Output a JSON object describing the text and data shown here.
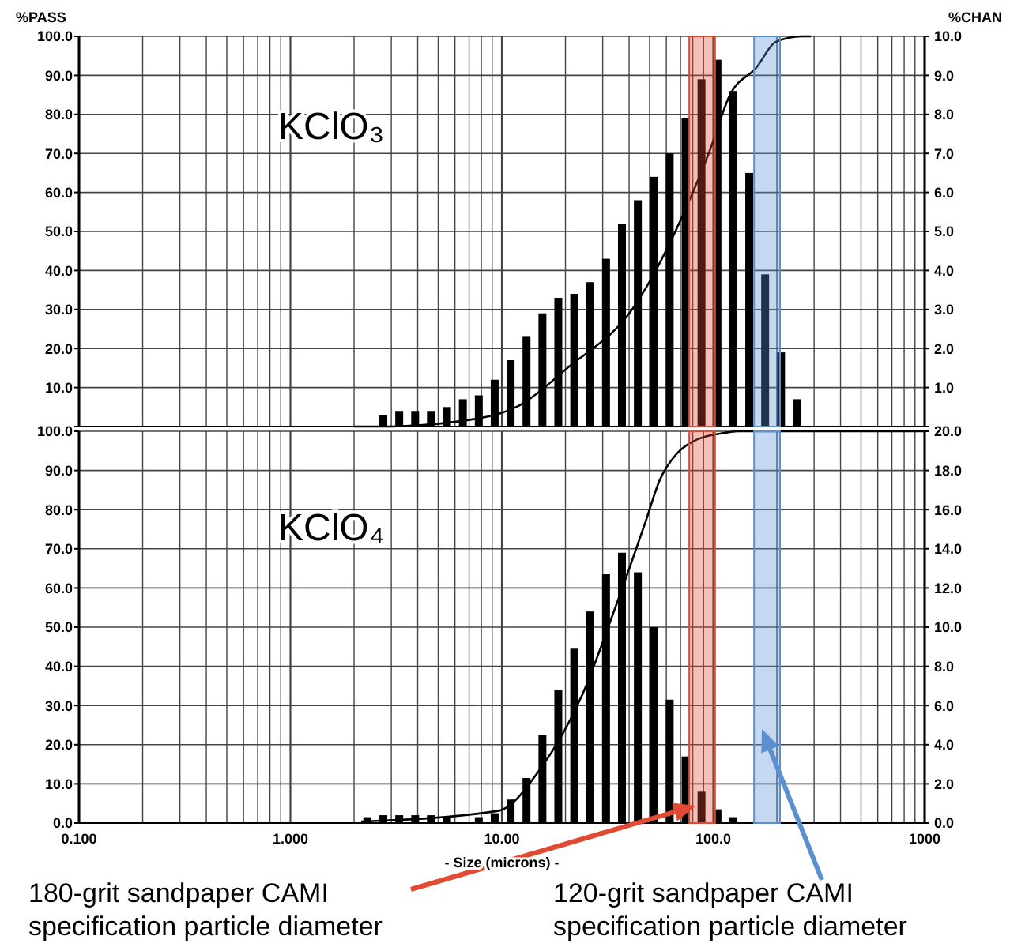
{
  "chart_data": [
    {
      "type": "bar",
      "title": "KClO₃",
      "ylabel": "%PASS",
      "y2label": "%CHAN",
      "log": "x",
      "grid": true,
      "tick_labels": "y",
      "xlim": [
        0.1,
        1000
      ],
      "xticks": [
        {
          "value": 0.1,
          "label": null
        },
        {
          "value": 0.2,
          "label": null
        },
        {
          "value": 0.3,
          "label": null
        },
        {
          "value": 0.4,
          "label": null
        },
        {
          "value": 0.5,
          "label": null
        },
        {
          "value": 0.6,
          "label": null
        },
        {
          "value": 0.7,
          "label": null
        },
        {
          "value": 0.8,
          "label": null
        },
        {
          "value": 0.9,
          "label": null
        },
        {
          "value": 1,
          "label": null
        },
        {
          "value": 2,
          "label": null
        },
        {
          "value": 3,
          "label": null
        },
        {
          "value": 4,
          "label": null
        },
        {
          "value": 5,
          "label": null
        },
        {
          "value": 6,
          "label": null
        },
        {
          "value": 7,
          "label": null
        },
        {
          "value": 8,
          "label": null
        },
        {
          "value": 9,
          "label": null
        },
        {
          "value": 10,
          "label": null
        },
        {
          "value": 20,
          "label": null
        },
        {
          "value": 30,
          "label": null
        },
        {
          "value": 40,
          "label": null
        },
        {
          "value": 50,
          "label": null
        },
        {
          "value": 60,
          "label": null
        },
        {
          "value": 70,
          "label": null
        },
        {
          "value": 80,
          "label": null
        },
        {
          "value": 90,
          "label": null
        },
        {
          "value": 100,
          "label": null
        },
        {
          "value": 200,
          "label": null
        },
        {
          "value": 300,
          "label": null
        },
        {
          "value": 400,
          "label": null
        },
        {
          "value": 500,
          "label": null
        },
        {
          "value": 600,
          "label": null
        },
        {
          "value": 700,
          "label": null
        },
        {
          "value": 800,
          "label": null
        },
        {
          "value": 900,
          "label": null
        },
        {
          "value": 1000,
          "label": null
        }
      ],
      "ylim": [
        0,
        100
      ],
      "yticks": [
        {
          "value": 0,
          "label": null
        },
        {
          "value": 10,
          "label": "10.0"
        },
        {
          "value": 20,
          "label": "20.0"
        },
        {
          "value": 30,
          "label": "30.0"
        },
        {
          "value": 40,
          "label": "40.0"
        },
        {
          "value": 50,
          "label": "50.0"
        },
        {
          "value": 60,
          "label": "60.0"
        },
        {
          "value": 70,
          "label": "70.0"
        },
        {
          "value": 80,
          "label": "80.0"
        },
        {
          "value": 90,
          "label": "90.0"
        },
        {
          "value": 100,
          "label": "100.0"
        }
      ],
      "y2lim": [
        0,
        10
      ],
      "y2ticks": [
        {
          "value": 0,
          "label": null
        },
        {
          "value": 1,
          "label": "1.0"
        },
        {
          "value": 2,
          "label": "2.0"
        },
        {
          "value": 3,
          "label": "3.0"
        },
        {
          "value": 4,
          "label": "4.0"
        },
        {
          "value": 5,
          "label": "5.0"
        },
        {
          "value": 6,
          "label": "6.0"
        },
        {
          "value": 7,
          "label": "7.0"
        },
        {
          "value": 8,
          "label": "8.0"
        },
        {
          "value": 9,
          "label": "9.0"
        },
        {
          "value": 10,
          "label": "10.0"
        }
      ],
      "series": [
        {
          "axis": "y2",
          "color": "#000000",
          "x": [
            2.75,
            3.27,
            3.89,
            4.62,
            5.5,
            6.54,
            7.78,
            9.25,
            11,
            13.08,
            15.56,
            18.5,
            22,
            26.16,
            31.11,
            37,
            44,
            52.33,
            62.23,
            74,
            88,
            104.7,
            124.5,
            148,
            176,
            209.3,
            248.9
          ],
          "values": [
            0.3,
            0.4,
            0.4,
            0.4,
            0.5,
            0.7,
            0.8,
            1.2,
            1.7,
            2.3,
            2.9,
            3.3,
            3.4,
            3.7,
            4.3,
            5.2,
            5.8,
            6.4,
            7.0,
            7.9,
            8.9,
            9.4,
            8.6,
            6.5,
            3.9,
            1.9,
            0.7
          ]
        },
        {
          "type": "line",
          "axis": "y",
          "color": "#000000",
          "x": [
            2.0,
            2.7,
            7.6,
            12.1,
            20.3,
            42.7,
            71.6,
            95.5,
            120,
            160,
            198,
            262,
            290
          ],
          "values": [
            0,
            0,
            2,
            5.4,
            14.9,
            31.1,
            54,
            70.2,
            85,
            92,
            98.6,
            100,
            100
          ]
        }
      ],
      "bands": [
        {
          "axis": "x",
          "from": 77,
          "to": 102,
          "color": "#e34a33"
        },
        {
          "axis": "x",
          "from": 156,
          "to": 207,
          "color": "#5b8fd0"
        }
      ]
    },
    {
      "type": "bar",
      "title": "KClO₄",
      "xlabel": "- Size (microns) -",
      "log": "x",
      "grid": true,
      "xlim": [
        0.1,
        1000
      ],
      "xticks": [
        {
          "value": 0.1,
          "label": "0.100"
        },
        {
          "value": 0.2,
          "label": null
        },
        {
          "value": 0.3,
          "label": null
        },
        {
          "value": 0.4,
          "label": null
        },
        {
          "value": 0.5,
          "label": null
        },
        {
          "value": 0.6,
          "label": null
        },
        {
          "value": 0.7,
          "label": null
        },
        {
          "value": 0.8,
          "label": null
        },
        {
          "value": 0.9,
          "label": null
        },
        {
          "value": 1,
          "label": "1.000"
        },
        {
          "value": 2,
          "label": null
        },
        {
          "value": 3,
          "label": null
        },
        {
          "value": 4,
          "label": null
        },
        {
          "value": 5,
          "label": null
        },
        {
          "value": 6,
          "label": null
        },
        {
          "value": 7,
          "label": null
        },
        {
          "value": 8,
          "label": null
        },
        {
          "value": 9,
          "label": null
        },
        {
          "value": 10,
          "label": "10.00"
        },
        {
          "value": 20,
          "label": null
        },
        {
          "value": 30,
          "label": null
        },
        {
          "value": 40,
          "label": null
        },
        {
          "value": 50,
          "label": null
        },
        {
          "value": 60,
          "label": null
        },
        {
          "value": 70,
          "label": null
        },
        {
          "value": 80,
          "label": null
        },
        {
          "value": 90,
          "label": null
        },
        {
          "value": 100,
          "label": "100.0"
        },
        {
          "value": 200,
          "label": null
        },
        {
          "value": 300,
          "label": null
        },
        {
          "value": 400,
          "label": null
        },
        {
          "value": 500,
          "label": null
        },
        {
          "value": 600,
          "label": null
        },
        {
          "value": 700,
          "label": null
        },
        {
          "value": 800,
          "label": null
        },
        {
          "value": 900,
          "label": null
        },
        {
          "value": 1000,
          "label": "1000"
        }
      ],
      "ylim": [
        0,
        100
      ],
      "yticks": [
        {
          "value": 0,
          "label": "0.0"
        },
        {
          "value": 10,
          "label": "10.0"
        },
        {
          "value": 20,
          "label": "20.0"
        },
        {
          "value": 30,
          "label": "30.0"
        },
        {
          "value": 40,
          "label": "40.0"
        },
        {
          "value": 50,
          "label": "50.0"
        },
        {
          "value": 60,
          "label": "60.0"
        },
        {
          "value": 70,
          "label": "70.0"
        },
        {
          "value": 80,
          "label": "80.0"
        },
        {
          "value": 90,
          "label": "90.0"
        },
        {
          "value": 100,
          "label": "100.0"
        }
      ],
      "y2lim": [
        0,
        20
      ],
      "y2ticks": [
        {
          "value": 0,
          "label": "0.0"
        },
        {
          "value": 2,
          "label": "2.0"
        },
        {
          "value": 4,
          "label": "4.0"
        },
        {
          "value": 6,
          "label": "6.0"
        },
        {
          "value": 8,
          "label": "8.0"
        },
        {
          "value": 10,
          "label": "10.0"
        },
        {
          "value": 12,
          "label": "12.0"
        },
        {
          "value": 14,
          "label": "14.0"
        },
        {
          "value": 16,
          "label": "16.0"
        },
        {
          "value": 18,
          "label": "18.0"
        },
        {
          "value": 20,
          "label": "20.0"
        }
      ],
      "series": [
        {
          "axis": "y2",
          "color": "#000000",
          "x": [
            2.31,
            2.75,
            3.27,
            3.89,
            4.62,
            5.5,
            7.78,
            9.25,
            11,
            13.08,
            15.56,
            18.5,
            22,
            26.16,
            31.11,
            37,
            44,
            52.33,
            62.23,
            74,
            88,
            104.7,
            124.5
          ],
          "values": [
            0.3,
            0.4,
            0.4,
            0.4,
            0.4,
            0.3,
            0.3,
            0.5,
            1.2,
            2.3,
            4.5,
            6.8,
            8.9,
            10.8,
            12.7,
            13.8,
            12.8,
            10.0,
            6.3,
            3.4,
            1.6,
            0.7,
            0.3
          ]
        },
        {
          "type": "line",
          "axis": "y",
          "color": "#000000",
          "x": [
            2.16,
            9.6,
            15.2,
            24,
            34,
            47.9,
            55.8,
            66.5,
            79.5,
            113,
            130,
            1000
          ],
          "values": [
            0.4,
            3.1,
            13.8,
            32.7,
            54.2,
            77,
            87.5,
            94,
            97.3,
            99.6,
            100,
            100
          ]
        }
      ],
      "bands": [
        {
          "axis": "x",
          "from": 77,
          "to": 102,
          "color": "#e34a33"
        },
        {
          "axis": "x",
          "from": 156,
          "to": 207,
          "color": "#5b8fd0"
        }
      ],
      "annotations": [
        "180-grit sandpaper CAMI\nspecification particle diameter",
        {
          "text": "120-grit sandpaper CAMI\nspecification particle diameter",
          "x": 170,
          "y": 4.8
        }
      ]
    }
  ]
}
